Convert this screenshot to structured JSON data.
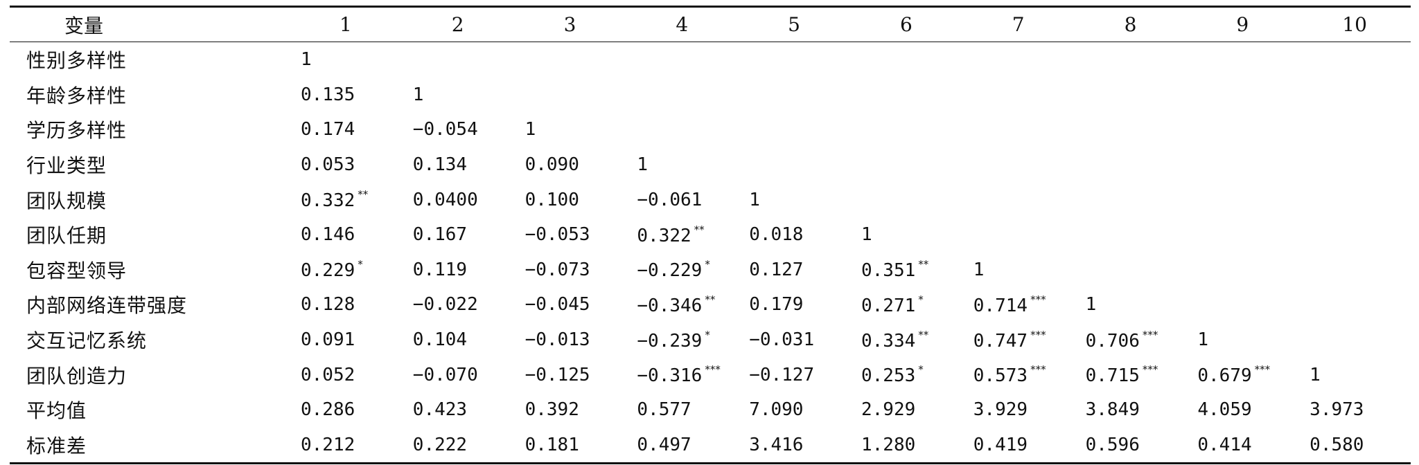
{
  "table": {
    "headers": [
      "变量",
      "1",
      "2",
      "3",
      "4",
      "5",
      "6",
      "7",
      "8",
      "9",
      "10"
    ],
    "rows": [
      {
        "label": "性别多样性",
        "cells": [
          {
            "v": "1",
            "s": ""
          },
          {
            "v": "",
            "s": ""
          },
          {
            "v": "",
            "s": ""
          },
          {
            "v": "",
            "s": ""
          },
          {
            "v": "",
            "s": ""
          },
          {
            "v": "",
            "s": ""
          },
          {
            "v": "",
            "s": ""
          },
          {
            "v": "",
            "s": ""
          },
          {
            "v": "",
            "s": ""
          },
          {
            "v": "",
            "s": ""
          }
        ]
      },
      {
        "label": "年龄多样性",
        "cells": [
          {
            "v": "0.135",
            "s": ""
          },
          {
            "v": "1",
            "s": ""
          },
          {
            "v": "",
            "s": ""
          },
          {
            "v": "",
            "s": ""
          },
          {
            "v": "",
            "s": ""
          },
          {
            "v": "",
            "s": ""
          },
          {
            "v": "",
            "s": ""
          },
          {
            "v": "",
            "s": ""
          },
          {
            "v": "",
            "s": ""
          },
          {
            "v": "",
            "s": ""
          }
        ]
      },
      {
        "label": "学历多样性",
        "cells": [
          {
            "v": "0.174",
            "s": ""
          },
          {
            "v": "−0.054",
            "s": ""
          },
          {
            "v": "1",
            "s": ""
          },
          {
            "v": "",
            "s": ""
          },
          {
            "v": "",
            "s": ""
          },
          {
            "v": "",
            "s": ""
          },
          {
            "v": "",
            "s": ""
          },
          {
            "v": "",
            "s": ""
          },
          {
            "v": "",
            "s": ""
          },
          {
            "v": "",
            "s": ""
          }
        ]
      },
      {
        "label": "行业类型",
        "cells": [
          {
            "v": "0.053",
            "s": ""
          },
          {
            "v": "0.134",
            "s": ""
          },
          {
            "v": "0.090",
            "s": ""
          },
          {
            "v": "1",
            "s": ""
          },
          {
            "v": "",
            "s": ""
          },
          {
            "v": "",
            "s": ""
          },
          {
            "v": "",
            "s": ""
          },
          {
            "v": "",
            "s": ""
          },
          {
            "v": "",
            "s": ""
          },
          {
            "v": "",
            "s": ""
          }
        ]
      },
      {
        "label": "团队规模",
        "cells": [
          {
            "v": "0.332",
            "s": "**"
          },
          {
            "v": "0.0400",
            "s": ""
          },
          {
            "v": "0.100",
            "s": ""
          },
          {
            "v": "−0.061",
            "s": ""
          },
          {
            "v": "1",
            "s": ""
          },
          {
            "v": "",
            "s": ""
          },
          {
            "v": "",
            "s": ""
          },
          {
            "v": "",
            "s": ""
          },
          {
            "v": "",
            "s": ""
          },
          {
            "v": "",
            "s": ""
          }
        ]
      },
      {
        "label": "团队任期",
        "cells": [
          {
            "v": "0.146",
            "s": ""
          },
          {
            "v": "0.167",
            "s": ""
          },
          {
            "v": "−0.053",
            "s": ""
          },
          {
            "v": "0.322",
            "s": "**"
          },
          {
            "v": "0.018",
            "s": ""
          },
          {
            "v": "1",
            "s": ""
          },
          {
            "v": "",
            "s": ""
          },
          {
            "v": "",
            "s": ""
          },
          {
            "v": "",
            "s": ""
          },
          {
            "v": "",
            "s": ""
          }
        ]
      },
      {
        "label": "包容型领导",
        "cells": [
          {
            "v": "0.229",
            "s": "*"
          },
          {
            "v": "0.119",
            "s": ""
          },
          {
            "v": "−0.073",
            "s": ""
          },
          {
            "v": "−0.229",
            "s": "*"
          },
          {
            "v": "0.127",
            "s": ""
          },
          {
            "v": "0.351",
            "s": "**"
          },
          {
            "v": "1",
            "s": ""
          },
          {
            "v": "",
            "s": ""
          },
          {
            "v": "",
            "s": ""
          },
          {
            "v": "",
            "s": ""
          }
        ]
      },
      {
        "label": "内部网络连带强度",
        "cells": [
          {
            "v": "0.128",
            "s": ""
          },
          {
            "v": "−0.022",
            "s": ""
          },
          {
            "v": "−0.045",
            "s": ""
          },
          {
            "v": "−0.346",
            "s": "**"
          },
          {
            "v": "0.179",
            "s": ""
          },
          {
            "v": "0.271",
            "s": "*"
          },
          {
            "v": "0.714",
            "s": "***"
          },
          {
            "v": "1",
            "s": ""
          },
          {
            "v": "",
            "s": ""
          },
          {
            "v": "",
            "s": ""
          }
        ]
      },
      {
        "label": "交互记忆系统",
        "cells": [
          {
            "v": "0.091",
            "s": ""
          },
          {
            "v": "0.104",
            "s": ""
          },
          {
            "v": "−0.013",
            "s": ""
          },
          {
            "v": "−0.239",
            "s": "*"
          },
          {
            "v": "−0.031",
            "s": ""
          },
          {
            "v": "0.334",
            "s": "**"
          },
          {
            "v": "0.747",
            "s": "***"
          },
          {
            "v": "0.706",
            "s": "***"
          },
          {
            "v": "1",
            "s": ""
          },
          {
            "v": "",
            "s": ""
          }
        ]
      },
      {
        "label": "团队创造力",
        "cells": [
          {
            "v": "0.052",
            "s": ""
          },
          {
            "v": "−0.070",
            "s": ""
          },
          {
            "v": "−0.125",
            "s": ""
          },
          {
            "v": "−0.316",
            "s": "***"
          },
          {
            "v": "−0.127",
            "s": ""
          },
          {
            "v": "0.253",
            "s": "*"
          },
          {
            "v": "0.573",
            "s": "***"
          },
          {
            "v": "0.715",
            "s": "***"
          },
          {
            "v": "0.679",
            "s": "***"
          },
          {
            "v": "1",
            "s": ""
          }
        ]
      },
      {
        "label": "平均值",
        "cells": [
          {
            "v": "0.286",
            "s": ""
          },
          {
            "v": "0.423",
            "s": ""
          },
          {
            "v": "0.392",
            "s": ""
          },
          {
            "v": "0.577",
            "s": ""
          },
          {
            "v": "7.090",
            "s": ""
          },
          {
            "v": "2.929",
            "s": ""
          },
          {
            "v": "3.929",
            "s": ""
          },
          {
            "v": "3.849",
            "s": ""
          },
          {
            "v": "4.059",
            "s": ""
          },
          {
            "v": "3.973",
            "s": ""
          }
        ]
      },
      {
        "label": "标准差",
        "cells": [
          {
            "v": "0.212",
            "s": ""
          },
          {
            "v": "0.222",
            "s": ""
          },
          {
            "v": "0.181",
            "s": ""
          },
          {
            "v": "0.497",
            "s": ""
          },
          {
            "v": "3.416",
            "s": ""
          },
          {
            "v": "1.280",
            "s": ""
          },
          {
            "v": "0.419",
            "s": ""
          },
          {
            "v": "0.596",
            "s": ""
          },
          {
            "v": "0.414",
            "s": ""
          },
          {
            "v": "0.580",
            "s": ""
          }
        ]
      }
    ]
  }
}
